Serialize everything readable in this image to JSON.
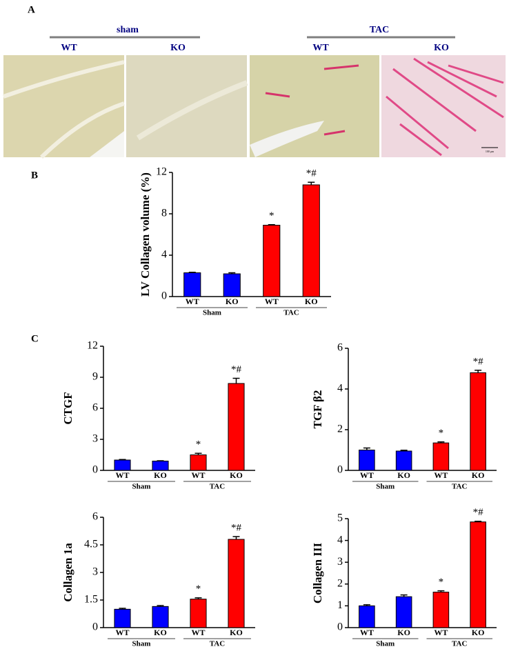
{
  "panel_a": {
    "label": "A",
    "groups": [
      {
        "name": "sham",
        "columns": [
          "WT",
          "KO"
        ]
      },
      {
        "name": "TAC",
        "columns": [
          "WT",
          "KO"
        ]
      }
    ],
    "scale_bar": "100 μm"
  },
  "chart_data": [
    {
      "type": "bar",
      "panel": "B",
      "y_label": "LV Collagen volume (%)",
      "categories": [
        "WT",
        "KO",
        "WT",
        "KO"
      ],
      "group_labels": [
        "Sham",
        "TAC"
      ],
      "values": [
        2.3,
        2.2,
        6.9,
        10.8
      ],
      "errors": [
        0.05,
        0.1,
        0.05,
        0.25
      ],
      "colors": [
        "#0000ff",
        "#0000ff",
        "#ff0000",
        "#ff0000"
      ],
      "annotations": [
        {
          "index": 2,
          "text": "*"
        },
        {
          "index": 3,
          "text": "*#"
        }
      ],
      "ylim": [
        0,
        12
      ],
      "yticks": [
        0,
        4,
        8,
        12
      ]
    },
    {
      "type": "bar",
      "panel": "C",
      "y_label": "CTGF",
      "categories": [
        "WT",
        "KO",
        "WT",
        "KO"
      ],
      "group_labels": [
        "Sham",
        "TAC"
      ],
      "values": [
        1.0,
        0.9,
        1.5,
        8.4
      ],
      "errors": [
        0.05,
        0.03,
        0.15,
        0.5
      ],
      "colors": [
        "#0000ff",
        "#0000ff",
        "#ff0000",
        "#ff0000"
      ],
      "annotations": [
        {
          "index": 2,
          "text": "*"
        },
        {
          "index": 3,
          "text": "*#"
        }
      ],
      "ylim": [
        0,
        12
      ],
      "yticks": [
        0,
        3,
        6,
        9,
        12
      ]
    },
    {
      "type": "bar",
      "y_label": "TGF β2",
      "categories": [
        "WT",
        "KO",
        "WT",
        "KO"
      ],
      "group_labels": [
        "Sham",
        "TAC"
      ],
      "values": [
        1.0,
        0.95,
        1.35,
        4.8
      ],
      "errors": [
        0.1,
        0.04,
        0.05,
        0.12
      ],
      "colors": [
        "#0000ff",
        "#0000ff",
        "#ff0000",
        "#ff0000"
      ],
      "annotations": [
        {
          "index": 2,
          "text": "*"
        },
        {
          "index": 3,
          "text": "*#"
        }
      ],
      "ylim": [
        0,
        6
      ],
      "yticks": [
        0,
        2,
        4,
        6
      ]
    },
    {
      "type": "bar",
      "y_label": "Collagen 1a",
      "categories": [
        "WT",
        "KO",
        "WT",
        "KO"
      ],
      "group_labels": [
        "Sham",
        "TAC"
      ],
      "values": [
        1.0,
        1.15,
        1.55,
        4.8
      ],
      "errors": [
        0.05,
        0.05,
        0.07,
        0.15
      ],
      "colors": [
        "#0000ff",
        "#0000ff",
        "#ff0000",
        "#ff0000"
      ],
      "annotations": [
        {
          "index": 2,
          "text": "*"
        },
        {
          "index": 3,
          "text": "*#"
        }
      ],
      "ylim": [
        0,
        6
      ],
      "yticks": [
        0,
        1.5,
        3,
        4.5,
        6
      ]
    },
    {
      "type": "bar",
      "y_label": "Collagen III",
      "categories": [
        "WT",
        "KO",
        "WT",
        "KO"
      ],
      "group_labels": [
        "Sham",
        "TAC"
      ],
      "values": [
        1.0,
        1.42,
        1.63,
        4.85
      ],
      "errors": [
        0.05,
        0.08,
        0.06,
        0.03
      ],
      "colors": [
        "#0000ff",
        "#0000ff",
        "#ff0000",
        "#ff0000"
      ],
      "annotations": [
        {
          "index": 2,
          "text": "*"
        },
        {
          "index": 3,
          "text": "*#"
        }
      ],
      "ylim": [
        0,
        5
      ],
      "yticks": [
        0,
        1,
        2,
        3,
        4,
        5
      ]
    }
  ]
}
